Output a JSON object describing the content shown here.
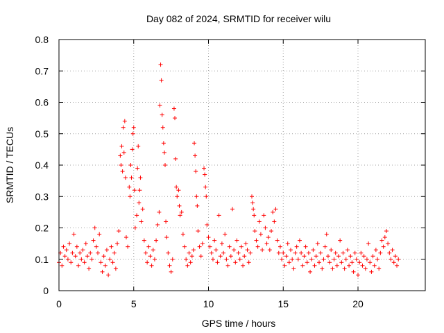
{
  "chart_data": {
    "type": "scatter",
    "title": "Day 082 of 2024, SRMTID for receiver wilu",
    "xlabel": "GPS time / hours",
    "ylabel": "SRMTID / TECUs",
    "xlim": [
      0,
      24.5
    ],
    "ylim": [
      0,
      0.8
    ],
    "xticks": [
      "0",
      "5",
      "10",
      "15",
      "20"
    ],
    "xtick_values": [
      0,
      5,
      10,
      15,
      20
    ],
    "yticks": [
      "0",
      "0.1",
      "0.2",
      "0.3",
      "0.4",
      "0.5",
      "0.6",
      "0.7",
      "0.8"
    ],
    "ytick_values": [
      0,
      0.1,
      0.2,
      0.3,
      0.4,
      0.5,
      0.6,
      0.7,
      0.8
    ],
    "grid": true,
    "marker": "plus",
    "color": "#ff0000",
    "series": [
      {
        "name": "SRMTID",
        "points": [
          [
            0.0,
            0.09
          ],
          [
            0.1,
            0.12
          ],
          [
            0.2,
            0.08
          ],
          [
            0.3,
            0.14
          ],
          [
            0.4,
            0.11
          ],
          [
            0.5,
            0.13
          ],
          [
            0.6,
            0.1
          ],
          [
            0.7,
            0.15
          ],
          [
            0.8,
            0.09
          ],
          [
            0.9,
            0.12
          ],
          [
            1.0,
            0.18
          ],
          [
            1.1,
            0.11
          ],
          [
            1.2,
            0.14
          ],
          [
            1.3,
            0.08
          ],
          [
            1.4,
            0.12
          ],
          [
            1.5,
            0.1
          ],
          [
            1.6,
            0.13
          ],
          [
            1.7,
            0.09
          ],
          [
            1.8,
            0.15
          ],
          [
            1.9,
            0.11
          ],
          [
            2.0,
            0.07
          ],
          [
            2.1,
            0.12
          ],
          [
            2.2,
            0.1
          ],
          [
            2.3,
            0.16
          ],
          [
            2.4,
            0.2
          ],
          [
            2.5,
            0.14
          ],
          [
            2.6,
            0.12
          ],
          [
            2.7,
            0.18
          ],
          [
            2.8,
            0.09
          ],
          [
            2.9,
            0.06
          ],
          [
            3.0,
            0.11
          ],
          [
            3.1,
            0.08
          ],
          [
            3.2,
            0.13
          ],
          [
            3.3,
            0.05
          ],
          [
            3.4,
            0.1
          ],
          [
            3.5,
            0.14
          ],
          [
            3.6,
            0.09
          ],
          [
            3.7,
            0.12
          ],
          [
            3.8,
            0.07
          ],
          [
            3.9,
            0.15
          ],
          [
            4.0,
            0.19
          ],
          [
            4.1,
            0.43
          ],
          [
            4.15,
            0.4
          ],
          [
            4.2,
            0.46
          ],
          [
            4.25,
            0.38
          ],
          [
            4.3,
            0.52
          ],
          [
            4.35,
            0.44
          ],
          [
            4.4,
            0.54
          ],
          [
            4.45,
            0.36
          ],
          [
            4.5,
            0.17
          ],
          [
            4.6,
            0.14
          ],
          [
            4.7,
            0.33
          ],
          [
            4.75,
            0.3
          ],
          [
            4.8,
            0.4
          ],
          [
            4.85,
            0.36
          ],
          [
            4.9,
            0.45
          ],
          [
            4.95,
            0.5
          ],
          [
            5.0,
            0.52
          ],
          [
            5.05,
            0.32
          ],
          [
            5.1,
            0.2
          ],
          [
            5.2,
            0.24
          ],
          [
            5.25,
            0.39
          ],
          [
            5.3,
            0.46
          ],
          [
            5.35,
            0.28
          ],
          [
            5.4,
            0.32
          ],
          [
            5.45,
            0.36
          ],
          [
            5.5,
            0.22
          ],
          [
            5.6,
            0.26
          ],
          [
            5.7,
            0.16
          ],
          [
            5.8,
            0.12
          ],
          [
            5.9,
            0.09
          ],
          [
            6.0,
            0.14
          ],
          [
            6.1,
            0.11
          ],
          [
            6.2,
            0.08
          ],
          [
            6.3,
            0.13
          ],
          [
            6.4,
            0.1
          ],
          [
            6.5,
            0.16
          ],
          [
            6.6,
            0.21
          ],
          [
            6.7,
            0.25
          ],
          [
            6.75,
            0.59
          ],
          [
            6.8,
            0.72
          ],
          [
            6.85,
            0.67
          ],
          [
            6.9,
            0.56
          ],
          [
            6.95,
            0.52
          ],
          [
            7.0,
            0.47
          ],
          [
            7.05,
            0.44
          ],
          [
            7.1,
            0.4
          ],
          [
            7.15,
            0.22
          ],
          [
            7.2,
            0.17
          ],
          [
            7.3,
            0.12
          ],
          [
            7.4,
            0.08
          ],
          [
            7.5,
            0.06
          ],
          [
            7.6,
            0.1
          ],
          [
            7.7,
            0.58
          ],
          [
            7.75,
            0.55
          ],
          [
            7.8,
            0.42
          ],
          [
            7.85,
            0.33
          ],
          [
            7.9,
            0.3
          ],
          [
            8.0,
            0.32
          ],
          [
            8.05,
            0.27
          ],
          [
            8.1,
            0.24
          ],
          [
            8.2,
            0.25
          ],
          [
            8.3,
            0.18
          ],
          [
            8.4,
            0.14
          ],
          [
            8.5,
            0.1
          ],
          [
            8.6,
            0.08
          ],
          [
            8.7,
            0.12
          ],
          [
            8.8,
            0.09
          ],
          [
            8.9,
            0.11
          ],
          [
            9.0,
            0.13
          ],
          [
            9.05,
            0.47
          ],
          [
            9.1,
            0.43
          ],
          [
            9.15,
            0.38
          ],
          [
            9.2,
            0.3
          ],
          [
            9.25,
            0.27
          ],
          [
            9.3,
            0.19
          ],
          [
            9.4,
            0.14
          ],
          [
            9.5,
            0.11
          ],
          [
            9.6,
            0.15
          ],
          [
            9.7,
            0.39
          ],
          [
            9.75,
            0.37
          ],
          [
            9.8,
            0.33
          ],
          [
            9.85,
            0.3
          ],
          [
            9.9,
            0.21
          ],
          [
            10.0,
            0.17
          ],
          [
            10.1,
            0.14
          ],
          [
            10.2,
            0.12
          ],
          [
            10.3,
            0.1
          ],
          [
            10.4,
            0.16
          ],
          [
            10.5,
            0.13
          ],
          [
            10.6,
            0.09
          ],
          [
            10.7,
            0.24
          ],
          [
            10.8,
            0.11
          ],
          [
            10.9,
            0.15
          ],
          [
            11.0,
            0.12
          ],
          [
            11.1,
            0.18
          ],
          [
            11.2,
            0.1
          ],
          [
            11.3,
            0.08
          ],
          [
            11.4,
            0.14
          ],
          [
            11.5,
            0.11
          ],
          [
            11.6,
            0.26
          ],
          [
            11.7,
            0.13
          ],
          [
            11.8,
            0.09
          ],
          [
            11.9,
            0.16
          ],
          [
            12.0,
            0.12
          ],
          [
            12.1,
            0.1
          ],
          [
            12.2,
            0.14
          ],
          [
            12.3,
            0.08
          ],
          [
            12.4,
            0.11
          ],
          [
            12.5,
            0.15
          ],
          [
            12.6,
            0.13
          ],
          [
            12.7,
            0.09
          ],
          [
            12.8,
            0.12
          ],
          [
            12.9,
            0.3
          ],
          [
            12.95,
            0.28
          ],
          [
            13.0,
            0.26
          ],
          [
            13.05,
            0.24
          ],
          [
            13.1,
            0.19
          ],
          [
            13.2,
            0.16
          ],
          [
            13.3,
            0.14
          ],
          [
            13.4,
            0.22
          ],
          [
            13.5,
            0.18
          ],
          [
            13.6,
            0.13
          ],
          [
            13.7,
            0.24
          ],
          [
            13.8,
            0.2
          ],
          [
            13.9,
            0.15
          ],
          [
            14.0,
            0.17
          ],
          [
            14.1,
            0.13
          ],
          [
            14.2,
            0.19
          ],
          [
            14.3,
            0.25
          ],
          [
            14.4,
            0.22
          ],
          [
            14.5,
            0.26
          ],
          [
            14.6,
            0.16
          ],
          [
            14.7,
            0.12
          ],
          [
            14.8,
            0.14
          ],
          [
            14.9,
            0.1
          ],
          [
            15.0,
            0.12
          ],
          [
            15.1,
            0.08
          ],
          [
            15.2,
            0.11
          ],
          [
            15.3,
            0.15
          ],
          [
            15.4,
            0.09
          ],
          [
            15.5,
            0.13
          ],
          [
            15.6,
            0.1
          ],
          [
            15.7,
            0.07
          ],
          [
            15.8,
            0.12
          ],
          [
            15.9,
            0.14
          ],
          [
            16.0,
            0.1
          ],
          [
            16.1,
            0.16
          ],
          [
            16.2,
            0.12
          ],
          [
            16.3,
            0.08
          ],
          [
            16.4,
            0.11
          ],
          [
            16.5,
            0.14
          ],
          [
            16.6,
            0.09
          ],
          [
            16.7,
            0.12
          ],
          [
            16.8,
            0.06
          ],
          [
            16.9,
            0.1
          ],
          [
            17.0,
            0.13
          ],
          [
            17.1,
            0.08
          ],
          [
            17.2,
            0.11
          ],
          [
            17.3,
            0.15
          ],
          [
            17.4,
            0.09
          ],
          [
            17.5,
            0.12
          ],
          [
            17.6,
            0.07
          ],
          [
            17.7,
            0.1
          ],
          [
            17.8,
            0.14
          ],
          [
            17.9,
            0.18
          ],
          [
            18.0,
            0.11
          ],
          [
            18.1,
            0.09
          ],
          [
            18.2,
            0.13
          ],
          [
            18.3,
            0.07
          ],
          [
            18.4,
            0.1
          ],
          [
            18.5,
            0.12
          ],
          [
            18.6,
            0.08
          ],
          [
            18.7,
            0.11
          ],
          [
            18.8,
            0.16
          ],
          [
            18.9,
            0.09
          ],
          [
            19.0,
            0.12
          ],
          [
            19.1,
            0.07
          ],
          [
            19.2,
            0.1
          ],
          [
            19.3,
            0.13
          ],
          [
            19.4,
            0.08
          ],
          [
            19.5,
            0.11
          ],
          [
            19.6,
            0.09
          ],
          [
            19.7,
            0.06
          ],
          [
            19.8,
            0.12
          ],
          [
            19.9,
            0.1
          ],
          [
            20.0,
            0.05
          ],
          [
            20.1,
            0.09
          ],
          [
            20.2,
            0.12
          ],
          [
            20.3,
            0.08
          ],
          [
            20.4,
            0.11
          ],
          [
            20.5,
            0.07
          ],
          [
            20.6,
            0.1
          ],
          [
            20.7,
            0.15
          ],
          [
            20.8,
            0.09
          ],
          [
            20.9,
            0.06
          ],
          [
            21.0,
            0.11
          ],
          [
            21.1,
            0.08
          ],
          [
            21.2,
            0.13
          ],
          [
            21.3,
            0.1
          ],
          [
            21.4,
            0.07
          ],
          [
            21.5,
            0.12
          ],
          [
            21.6,
            0.16
          ],
          [
            21.7,
            0.14
          ],
          [
            21.8,
            0.17
          ],
          [
            21.9,
            0.19
          ],
          [
            22.0,
            0.15
          ],
          [
            22.1,
            0.12
          ],
          [
            22.2,
            0.1
          ],
          [
            22.3,
            0.13
          ],
          [
            22.4,
            0.09
          ],
          [
            22.5,
            0.11
          ],
          [
            22.6,
            0.08
          ],
          [
            22.7,
            0.1
          ]
        ]
      }
    ]
  }
}
